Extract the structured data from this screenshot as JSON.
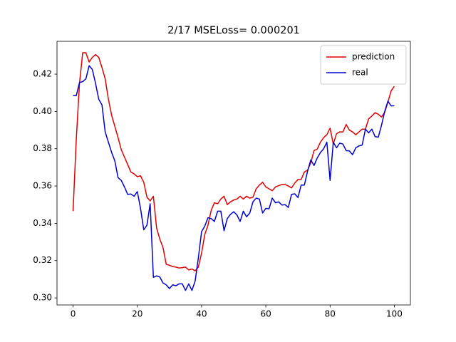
{
  "chart_data": {
    "type": "line",
    "title": "2/17 MSELoss= 0.000201",
    "x": [
      0,
      1,
      2,
      3,
      4,
      5,
      6,
      7,
      8,
      9,
      10,
      11,
      12,
      13,
      14,
      15,
      16,
      17,
      18,
      19,
      20,
      21,
      22,
      23,
      24,
      25,
      26,
      27,
      28,
      29,
      30,
      31,
      32,
      33,
      34,
      35,
      36,
      37,
      38,
      39,
      40,
      41,
      42,
      43,
      44,
      45,
      46,
      47,
      48,
      49,
      50,
      51,
      52,
      53,
      54,
      55,
      56,
      57,
      58,
      59,
      60,
      61,
      62,
      63,
      64,
      65,
      66,
      67,
      68,
      69,
      70,
      71,
      72,
      73,
      74,
      75,
      76,
      77,
      78,
      79,
      80,
      81,
      82,
      83,
      84,
      85,
      86,
      87,
      88,
      89,
      90,
      91,
      92,
      93,
      94,
      95,
      96,
      97,
      98,
      99,
      100
    ],
    "series": [
      {
        "name": "prediction",
        "color": "#e00000",
        "values": [
          0.3465,
          0.385,
          0.415,
          0.4315,
          0.4315,
          0.4265,
          0.429,
          0.4305,
          0.429,
          0.4235,
          0.4175,
          0.4065,
          0.398,
          0.392,
          0.386,
          0.3795,
          0.3755,
          0.3715,
          0.3675,
          0.3665,
          0.365,
          0.3655,
          0.362,
          0.354,
          0.352,
          0.3545,
          0.3375,
          0.3315,
          0.327,
          0.318,
          0.3175,
          0.3168,
          0.3165,
          0.316,
          0.3162,
          0.3165,
          0.315,
          0.3155,
          0.3145,
          0.3165,
          0.324,
          0.334,
          0.339,
          0.347,
          0.351,
          0.3505,
          0.353,
          0.3545,
          0.35,
          0.3515,
          0.3525,
          0.353,
          0.3545,
          0.353,
          0.3545,
          0.3535,
          0.354,
          0.3585,
          0.3605,
          0.362,
          0.3595,
          0.3585,
          0.3575,
          0.3595,
          0.3602,
          0.3608,
          0.3608,
          0.36,
          0.359,
          0.3615,
          0.3635,
          0.3635,
          0.3675,
          0.3685,
          0.3725,
          0.379,
          0.3798,
          0.3835,
          0.386,
          0.3875,
          0.391,
          0.3825,
          0.388,
          0.389,
          0.389,
          0.393,
          0.39,
          0.389,
          0.3875,
          0.389,
          0.3905,
          0.3905,
          0.396,
          0.3975,
          0.3993,
          0.3985,
          0.397,
          0.3995,
          0.405,
          0.411,
          0.4135
        ]
      },
      {
        "name": "real",
        "color": "#0000d0",
        "values": [
          0.4085,
          0.4085,
          0.4155,
          0.416,
          0.4175,
          0.4245,
          0.4225,
          0.415,
          0.4065,
          0.4035,
          0.389,
          0.3835,
          0.378,
          0.3735,
          0.3645,
          0.363,
          0.3595,
          0.3555,
          0.3557,
          0.3545,
          0.357,
          0.348,
          0.3365,
          0.339,
          0.3505,
          0.311,
          0.3118,
          0.3112,
          0.308,
          0.307,
          0.305,
          0.307,
          0.3065,
          0.3075,
          0.3075,
          0.304,
          0.3075,
          0.304,
          0.309,
          0.3215,
          0.3355,
          0.3385,
          0.343,
          0.3425,
          0.341,
          0.3465,
          0.3465,
          0.336,
          0.3425,
          0.3448,
          0.3462,
          0.3445,
          0.341,
          0.3465,
          0.3435,
          0.3455,
          0.3515,
          0.3535,
          0.353,
          0.3455,
          0.348,
          0.3478,
          0.3535,
          0.351,
          0.3515,
          0.3498,
          0.35,
          0.3485,
          0.3555,
          0.3558,
          0.3538,
          0.3605,
          0.3605,
          0.368,
          0.374,
          0.371,
          0.375,
          0.378,
          0.38,
          0.3835,
          0.363,
          0.3835,
          0.3805,
          0.383,
          0.3825,
          0.379,
          0.3788,
          0.3768,
          0.3805,
          0.3815,
          0.382,
          0.3905,
          0.3885,
          0.3905,
          0.3865,
          0.3862,
          0.3925,
          0.4,
          0.4055,
          0.403,
          0.403
        ]
      }
    ],
    "xlim": [
      -5,
      105
    ],
    "xticks": [
      0,
      20,
      40,
      60,
      80,
      100
    ],
    "ylim": [
      0.2962,
      0.4376
    ],
    "yticks": [
      {
        "value": 0.3,
        "label": "0.30"
      },
      0.32,
      0.34,
      0.36,
      0.38,
      {
        "value": 0.4,
        "label": "0.40"
      },
      0.42
    ],
    "legend": "upper right",
    "grid": false
  }
}
